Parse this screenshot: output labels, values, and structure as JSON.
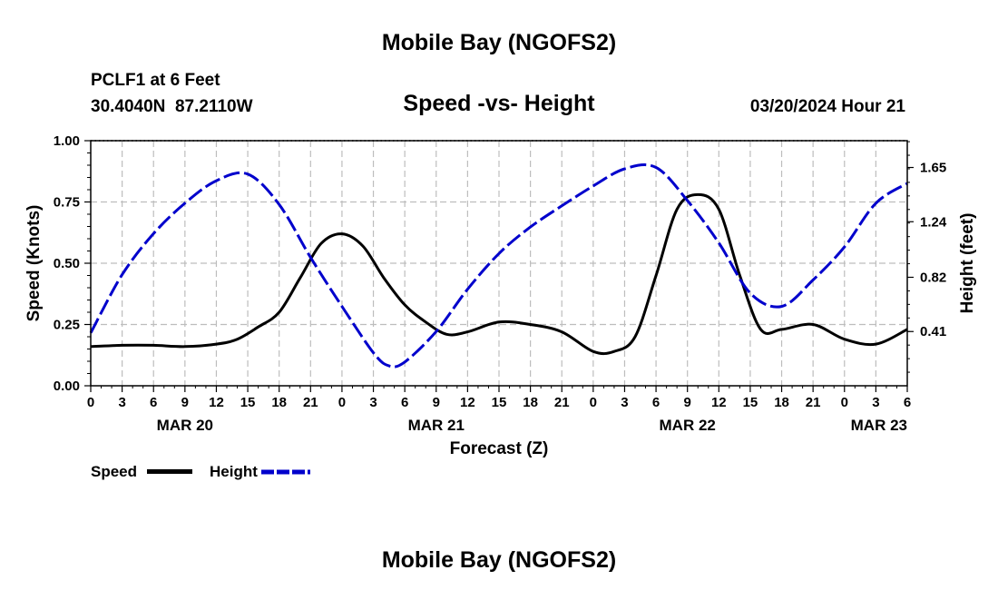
{
  "page": {
    "title_top": "Mobile Bay (NGOFS2)",
    "title_bottom": "Mobile Bay (NGOFS2)",
    "station_line1": "PCLF1 at 6 Feet",
    "station_line2": "30.4040N  87.2110W",
    "chart_title": "Speed -vs- Height",
    "date_label": "03/20/2024 Hour 21"
  },
  "legend": {
    "speed_label": "Speed",
    "height_label": "Height",
    "speed_color": "#000000",
    "height_color": "#0000cc"
  },
  "chart_data": {
    "type": "line",
    "title": "Speed -vs- Height",
    "xlabel": "Forecast (Z)",
    "ylabel_left": "Speed (Knots)",
    "ylabel_right": "Height (feet)",
    "x_hours_range": [
      0,
      78
    ],
    "ylim_left": [
      0,
      1.0
    ],
    "ylim_right": [
      0,
      1.8525
    ],
    "grid": true,
    "legend_position": "bottom-left",
    "x_tick_labels": [
      "0",
      "3",
      "6",
      "9",
      "12",
      "15",
      "18",
      "21",
      "0",
      "3",
      "6",
      "9",
      "12",
      "15",
      "18",
      "21",
      "0",
      "3",
      "6",
      "9",
      "12",
      "15",
      "18",
      "21",
      "0",
      "3",
      "6"
    ],
    "date_labels": [
      {
        "label": "MAR 20",
        "hour": 9
      },
      {
        "label": "MAR 21",
        "hour": 33
      },
      {
        "label": "MAR 22",
        "hour": 57
      },
      {
        "label": "MAR 23",
        "hour": 81
      }
    ],
    "y_left_ticks": [
      "0.00",
      "0.25",
      "0.50",
      "0.75",
      "1.00"
    ],
    "y_right_ticks": [
      {
        "label": "0.41",
        "value": 0.41
      },
      {
        "label": "0.82",
        "value": 0.82
      },
      {
        "label": "1.24",
        "value": 1.24
      },
      {
        "label": "1.65",
        "value": 1.65
      }
    ],
    "series": [
      {
        "name": "Speed",
        "axis": "left",
        "points": [
          [
            0,
            0.16
          ],
          [
            3,
            0.165
          ],
          [
            6,
            0.165
          ],
          [
            9,
            0.16
          ],
          [
            12,
            0.17
          ],
          [
            14,
            0.19
          ],
          [
            16,
            0.24
          ],
          [
            18,
            0.3
          ],
          [
            20,
            0.44
          ],
          [
            22,
            0.58
          ],
          [
            24,
            0.62
          ],
          [
            26,
            0.57
          ],
          [
            28,
            0.44
          ],
          [
            30,
            0.33
          ],
          [
            32,
            0.26
          ],
          [
            34,
            0.21
          ],
          [
            36,
            0.22
          ],
          [
            39,
            0.26
          ],
          [
            42,
            0.25
          ],
          [
            45,
            0.22
          ],
          [
            48,
            0.14
          ],
          [
            50,
            0.14
          ],
          [
            52,
            0.2
          ],
          [
            54,
            0.45
          ],
          [
            56,
            0.72
          ],
          [
            58,
            0.78
          ],
          [
            60,
            0.72
          ],
          [
            62,
            0.45
          ],
          [
            64,
            0.23
          ],
          [
            66,
            0.23
          ],
          [
            69,
            0.25
          ],
          [
            72,
            0.19
          ],
          [
            75,
            0.17
          ],
          [
            78,
            0.23
          ]
        ]
      },
      {
        "name": "Height",
        "axis": "right",
        "points": [
          [
            0,
            0.4
          ],
          [
            3,
            0.84
          ],
          [
            6,
            1.15
          ],
          [
            9,
            1.38
          ],
          [
            12,
            1.55
          ],
          [
            15,
            1.6
          ],
          [
            18,
            1.37
          ],
          [
            21,
            0.97
          ],
          [
            24,
            0.6
          ],
          [
            27,
            0.25
          ],
          [
            28.5,
            0.15
          ],
          [
            30,
            0.18
          ],
          [
            33,
            0.41
          ],
          [
            36,
            0.73
          ],
          [
            39,
            1.0
          ],
          [
            42,
            1.2
          ],
          [
            45,
            1.36
          ],
          [
            48,
            1.51
          ],
          [
            51,
            1.64
          ],
          [
            54,
            1.65
          ],
          [
            57,
            1.4
          ],
          [
            60,
            1.08
          ],
          [
            63,
            0.7
          ],
          [
            66,
            0.6
          ],
          [
            69,
            0.8
          ],
          [
            72,
            1.05
          ],
          [
            75,
            1.38
          ],
          [
            78,
            1.53
          ]
        ]
      }
    ]
  }
}
